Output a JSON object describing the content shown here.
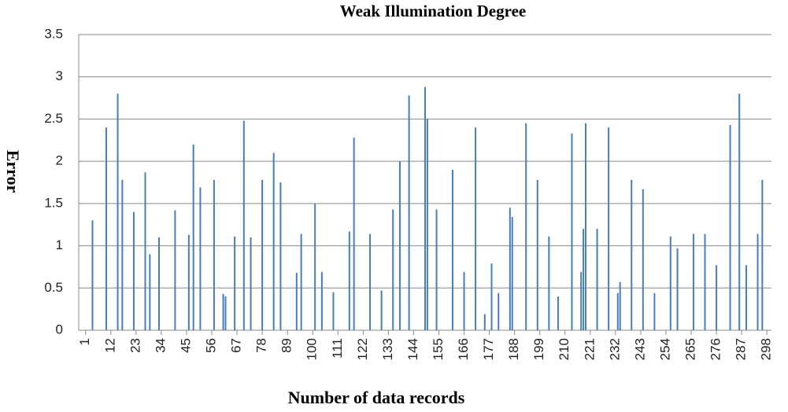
{
  "chart_data": {
    "type": "bar",
    "title": "Weak Illumination Degree",
    "x_label": "Number of data records",
    "y_label": "Error",
    "x": [
      4,
      10,
      15,
      17,
      22,
      27,
      29,
      33,
      40,
      46,
      48,
      51,
      57,
      61,
      62,
      66,
      70,
      73,
      78,
      83,
      86,
      93,
      95,
      101,
      104,
      109,
      116,
      118,
      125,
      130,
      135,
      138,
      142,
      149,
      150,
      154,
      161,
      166,
      171,
      175,
      178,
      181,
      186,
      187,
      193,
      198,
      203,
      207,
      213,
      217,
      218,
      219,
      224,
      229,
      233,
      234,
      239,
      244,
      249,
      256,
      259,
      266,
      271,
      276,
      282,
      286,
      289,
      294,
      296
    ],
    "values": [
      1.3,
      2.4,
      2.8,
      1.78,
      1.4,
      1.87,
      0.9,
      1.1,
      1.42,
      1.13,
      2.2,
      1.69,
      1.78,
      0.43,
      0.4,
      1.11,
      2.48,
      1.1,
      1.78,
      2.1,
      1.75,
      0.68,
      1.14,
      1.5,
      0.69,
      0.45,
      1.17,
      2.28,
      1.14,
      0.47,
      1.43,
      2.0,
      2.78,
      2.88,
      2.5,
      1.43,
      1.9,
      0.69,
      2.4,
      0.19,
      0.79,
      0.44,
      1.45,
      1.34,
      2.45,
      1.78,
      1.11,
      0.4,
      2.33,
      0.69,
      1.2,
      2.45,
      1.2,
      2.4,
      0.44,
      0.57,
      1.78,
      1.67,
      0.44,
      1.11,
      0.97,
      1.14,
      1.14,
      0.77,
      2.43,
      2.8,
      0.77,
      1.14,
      1.78
    ],
    "color": "#4a7ebb",
    "xlim": [
      -2,
      300
    ],
    "xticks": [
      1,
      12,
      23,
      34,
      45,
      56,
      67,
      78,
      89,
      100,
      111,
      122,
      133,
      144,
      155,
      166,
      177,
      188,
      199,
      210,
      221,
      232,
      243,
      254,
      265,
      276,
      287,
      298
    ],
    "ylim": [
      0,
      3.5
    ],
    "yticks": [
      0,
      0.5,
      1,
      1.5,
      2,
      2.5,
      3,
      3.5
    ],
    "grid": true
  }
}
